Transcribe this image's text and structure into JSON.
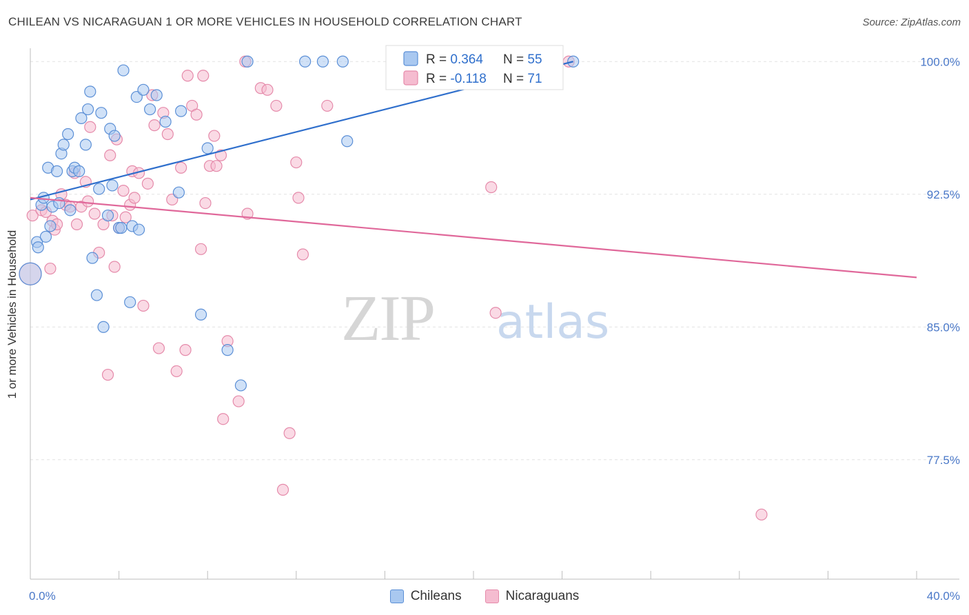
{
  "header": {
    "title": "CHILEAN VS NICARAGUAN 1 OR MORE VEHICLES IN HOUSEHOLD CORRELATION CHART",
    "source": "Source: ZipAtlas.com"
  },
  "watermark": {
    "zip": "ZIP",
    "atlas": "atlas"
  },
  "colors": {
    "blue_fill": "#a9c8f0",
    "blue_stroke": "#5b8fd6",
    "blue_line": "#2f6fcc",
    "pink_fill": "#f5bcd0",
    "pink_stroke": "#e58aaa",
    "pink_line": "#e0689a",
    "axis_text": "#4a78c8",
    "grid": "#e2e2e2"
  },
  "legend_box": {
    "rows": [
      {
        "r_label": "R = ",
        "r_value": "0.364",
        "n_label": "N = ",
        "n_value": "55"
      },
      {
        "r_label": "R = ",
        "r_value": "-0.118",
        "n_label": "N = ",
        "n_value": "71"
      }
    ]
  },
  "chart_data": {
    "type": "scatter",
    "title": "CHILEAN VS NICARAGUAN 1 OR MORE VEHICLES IN HOUSEHOLD CORRELATION CHART",
    "xlabel": "",
    "ylabel": "1 or more Vehicles in Household",
    "xlim": [
      0,
      40
    ],
    "ylim": [
      70.75,
      100.75
    ],
    "x_tick_labels": [
      {
        "value": 0,
        "label": "0.0%"
      },
      {
        "value": 40,
        "label": "40.0%"
      }
    ],
    "y_tick_labels": [
      {
        "value": 100,
        "label": "100.0%"
      },
      {
        "value": 92.5,
        "label": "92.5%"
      },
      {
        "value": 85,
        "label": "85.0%"
      },
      {
        "value": 77.5,
        "label": "77.5%"
      }
    ],
    "grid": true,
    "legend_position": "bottom-center",
    "series": [
      {
        "name": "Chileans",
        "color": "#5b8fd6",
        "trend": {
          "x": [
            0,
            24.5
          ],
          "y": [
            92.2,
            100.0
          ]
        },
        "points": [
          [
            0.0,
            88.0
          ],
          [
            0.3,
            89.8
          ],
          [
            0.35,
            89.5
          ],
          [
            0.5,
            91.9
          ],
          [
            0.6,
            92.3
          ],
          [
            0.7,
            90.1
          ],
          [
            0.8,
            94.0
          ],
          [
            0.9,
            90.7
          ],
          [
            1.0,
            91.8
          ],
          [
            1.2,
            93.8
          ],
          [
            1.3,
            92.0
          ],
          [
            1.4,
            94.8
          ],
          [
            1.5,
            95.3
          ],
          [
            1.7,
            95.9
          ],
          [
            1.8,
            91.6
          ],
          [
            1.9,
            93.8
          ],
          [
            2.0,
            94.0
          ],
          [
            2.2,
            93.8
          ],
          [
            2.3,
            96.8
          ],
          [
            2.5,
            95.3
          ],
          [
            2.6,
            97.3
          ],
          [
            2.7,
            98.3
          ],
          [
            2.8,
            88.9
          ],
          [
            3.0,
            86.8
          ],
          [
            3.1,
            92.8
          ],
          [
            3.2,
            97.1
          ],
          [
            3.3,
            85.0
          ],
          [
            3.5,
            91.3
          ],
          [
            3.6,
            96.2
          ],
          [
            3.7,
            93.0
          ],
          [
            3.8,
            95.8
          ],
          [
            4.0,
            90.6
          ],
          [
            4.1,
            90.6
          ],
          [
            4.2,
            99.5
          ],
          [
            4.5,
            86.4
          ],
          [
            4.6,
            90.7
          ],
          [
            4.8,
            98.0
          ],
          [
            4.9,
            90.5
          ],
          [
            5.1,
            98.4
          ],
          [
            5.4,
            97.3
          ],
          [
            5.7,
            98.1
          ],
          [
            6.1,
            96.6
          ],
          [
            6.7,
            92.6
          ],
          [
            6.8,
            97.2
          ],
          [
            7.7,
            85.7
          ],
          [
            8.0,
            95.1
          ],
          [
            8.9,
            83.7
          ],
          [
            9.5,
            81.7
          ],
          [
            9.8,
            100.0
          ],
          [
            12.4,
            100.0
          ],
          [
            13.2,
            100.0
          ],
          [
            14.1,
            100.0
          ],
          [
            14.3,
            95.5
          ],
          [
            21.3,
            100.0
          ],
          [
            24.5,
            100.0
          ]
        ]
      },
      {
        "name": "Nicaraguans",
        "color": "#e58aaa",
        "trend": {
          "x": [
            0,
            40
          ],
          "y": [
            92.3,
            87.8
          ]
        },
        "points": [
          [
            0.0,
            88.0
          ],
          [
            0.1,
            91.3
          ],
          [
            0.5,
            91.6
          ],
          [
            0.7,
            91.5
          ],
          [
            0.9,
            88.3
          ],
          [
            1.0,
            91.0
          ],
          [
            1.1,
            90.5
          ],
          [
            1.2,
            90.8
          ],
          [
            1.4,
            92.5
          ],
          [
            1.6,
            91.9
          ],
          [
            1.8,
            91.8
          ],
          [
            2.0,
            93.7
          ],
          [
            2.1,
            90.8
          ],
          [
            2.3,
            91.8
          ],
          [
            2.5,
            93.2
          ],
          [
            2.6,
            92.1
          ],
          [
            2.7,
            96.3
          ],
          [
            2.9,
            91.4
          ],
          [
            3.1,
            89.2
          ],
          [
            3.3,
            90.8
          ],
          [
            3.5,
            82.3
          ],
          [
            3.6,
            94.7
          ],
          [
            3.7,
            91.3
          ],
          [
            3.8,
            88.4
          ],
          [
            3.9,
            95.6
          ],
          [
            4.0,
            90.6
          ],
          [
            4.2,
            92.7
          ],
          [
            4.3,
            91.2
          ],
          [
            4.5,
            91.9
          ],
          [
            4.6,
            93.8
          ],
          [
            4.7,
            92.3
          ],
          [
            4.9,
            93.7
          ],
          [
            5.1,
            86.2
          ],
          [
            5.3,
            93.1
          ],
          [
            5.5,
            98.1
          ],
          [
            5.6,
            96.4
          ],
          [
            5.8,
            83.8
          ],
          [
            6.0,
            97.1
          ],
          [
            6.2,
            95.9
          ],
          [
            6.4,
            92.2
          ],
          [
            6.6,
            82.5
          ],
          [
            6.8,
            94.0
          ],
          [
            7.0,
            83.7
          ],
          [
            7.1,
            99.2
          ],
          [
            7.3,
            97.5
          ],
          [
            7.5,
            97.0
          ],
          [
            7.7,
            89.4
          ],
          [
            7.8,
            99.2
          ],
          [
            7.9,
            92.0
          ],
          [
            8.1,
            94.1
          ],
          [
            8.3,
            95.8
          ],
          [
            8.4,
            94.1
          ],
          [
            8.6,
            94.7
          ],
          [
            8.7,
            79.8
          ],
          [
            8.9,
            84.2
          ],
          [
            9.4,
            80.8
          ],
          [
            9.7,
            100.0
          ],
          [
            9.8,
            91.4
          ],
          [
            10.4,
            98.5
          ],
          [
            10.7,
            98.4
          ],
          [
            11.1,
            97.5
          ],
          [
            11.4,
            75.8
          ],
          [
            11.7,
            79.0
          ],
          [
            12.0,
            94.3
          ],
          [
            12.1,
            92.3
          ],
          [
            12.3,
            89.1
          ],
          [
            13.4,
            97.5
          ],
          [
            20.8,
            92.9
          ],
          [
            21.0,
            85.8
          ],
          [
            24.3,
            100.0
          ],
          [
            33.0,
            74.4
          ]
        ]
      }
    ]
  },
  "legend_bottom": [
    {
      "label": "Chileans"
    },
    {
      "label": "Nicaraguans"
    }
  ]
}
